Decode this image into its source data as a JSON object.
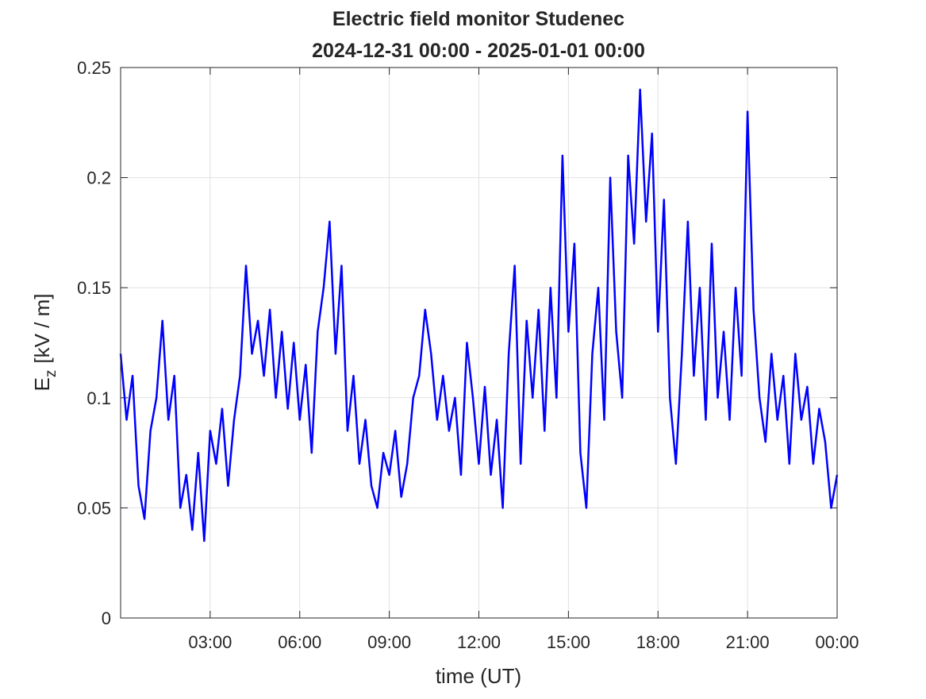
{
  "chart_data": {
    "type": "line",
    "title": "Electric field monitor Studenec",
    "subtitle": "2024-12-31 00:00 - 2025-01-01 00:00",
    "xlabel": "time (UT)",
    "ylabel": {
      "symbol": "E",
      "subscript": "z",
      "unit": "[kV / m]"
    },
    "xlim": [
      0,
      24
    ],
    "ylim": [
      0,
      0.25
    ],
    "xticks": [
      {
        "value": 3,
        "label": "03:00"
      },
      {
        "value": 6,
        "label": "06:00"
      },
      {
        "value": 9,
        "label": "09:00"
      },
      {
        "value": 12,
        "label": "12:00"
      },
      {
        "value": 15,
        "label": "15:00"
      },
      {
        "value": 18,
        "label": "18:00"
      },
      {
        "value": 21,
        "label": "21:00"
      },
      {
        "value": 24,
        "label": "00:00"
      }
    ],
    "yticks": [
      0,
      0.05,
      0.1,
      0.15,
      0.2,
      0.25
    ],
    "grid": true,
    "x": [
      0,
      0.2,
      0.4,
      0.6,
      0.8,
      1,
      1.2,
      1.4,
      1.6,
      1.8,
      2,
      2.2,
      2.4,
      2.6,
      2.8,
      3,
      3.2,
      3.4,
      3.6,
      3.8,
      4,
      4.2,
      4.4,
      4.6,
      4.8,
      5,
      5.2,
      5.4,
      5.6,
      5.8,
      6,
      6.2,
      6.4,
      6.6,
      6.8,
      7,
      7.2,
      7.4,
      7.6,
      7.8,
      8,
      8.2,
      8.4,
      8.6,
      8.8,
      9,
      9.2,
      9.4,
      9.6,
      9.8,
      10,
      10.2,
      10.4,
      10.6,
      10.8,
      11,
      11.2,
      11.4,
      11.6,
      11.8,
      12,
      12.2,
      12.4,
      12.6,
      12.8,
      13,
      13.2,
      13.4,
      13.6,
      13.8,
      14,
      14.2,
      14.4,
      14.6,
      14.8,
      15,
      15.2,
      15.4,
      15.6,
      15.8,
      16,
      16.2,
      16.4,
      16.6,
      16.8,
      17,
      17.2,
      17.4,
      17.6,
      17.8,
      18,
      18.2,
      18.4,
      18.6,
      18.8,
      19,
      19.2,
      19.4,
      19.6,
      19.8,
      20,
      20.2,
      20.4,
      20.6,
      20.8,
      21,
      21.2,
      21.4,
      21.6,
      21.8,
      22,
      22.2,
      22.4,
      22.6,
      22.8,
      23,
      23.2,
      23.4,
      23.6,
      23.8,
      24
    ],
    "series": [
      {
        "name": "Ez",
        "color": "#0000ff",
        "values": [
          0.12,
          0.09,
          0.11,
          0.06,
          0.045,
          0.085,
          0.1,
          0.135,
          0.09,
          0.11,
          0.05,
          0.065,
          0.04,
          0.075,
          0.035,
          0.085,
          0.07,
          0.095,
          0.06,
          0.09,
          0.11,
          0.16,
          0.12,
          0.135,
          0.11,
          0.14,
          0.1,
          0.13,
          0.095,
          0.125,
          0.09,
          0.115,
          0.075,
          0.13,
          0.15,
          0.18,
          0.12,
          0.16,
          0.085,
          0.11,
          0.07,
          0.09,
          0.06,
          0.05,
          0.075,
          0.065,
          0.085,
          0.055,
          0.07,
          0.1,
          0.11,
          0.14,
          0.12,
          0.09,
          0.11,
          0.085,
          0.1,
          0.065,
          0.125,
          0.1,
          0.07,
          0.105,
          0.065,
          0.09,
          0.05,
          0.12,
          0.16,
          0.07,
          0.135,
          0.1,
          0.14,
          0.085,
          0.15,
          0.1,
          0.21,
          0.13,
          0.17,
          0.075,
          0.05,
          0.12,
          0.15,
          0.09,
          0.2,
          0.13,
          0.1,
          0.21,
          0.17,
          0.24,
          0.18,
          0.22,
          0.13,
          0.19,
          0.1,
          0.07,
          0.12,
          0.18,
          0.11,
          0.15,
          0.09,
          0.17,
          0.1,
          0.13,
          0.09,
          0.15,
          0.11,
          0.23,
          0.14,
          0.1,
          0.08,
          0.12,
          0.09,
          0.11,
          0.07,
          0.12,
          0.09,
          0.105,
          0.07,
          0.095,
          0.08,
          0.05,
          0.065
        ]
      }
    ]
  }
}
